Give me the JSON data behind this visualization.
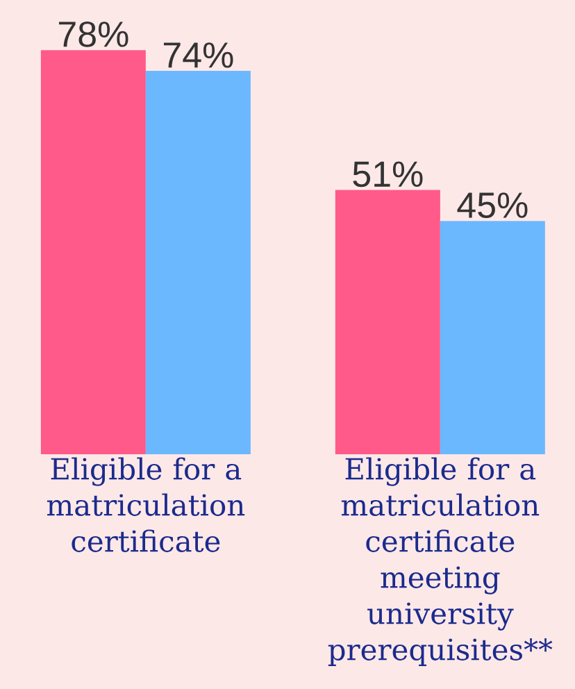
{
  "chart_data": {
    "type": "bar",
    "categories": [
      "Eligible for a matriculation certificate",
      "Eligible for a matriculation certificate meeting university prerequisites**"
    ],
    "series": [
      {
        "color": "#ff5a8a",
        "values": [
          78,
          51
        ],
        "value_labels": [
          "78%",
          "51%"
        ]
      },
      {
        "color": "#6bb8ff",
        "values": [
          74,
          45
        ],
        "value_labels": [
          "74%",
          "45%"
        ]
      }
    ]
  }
}
